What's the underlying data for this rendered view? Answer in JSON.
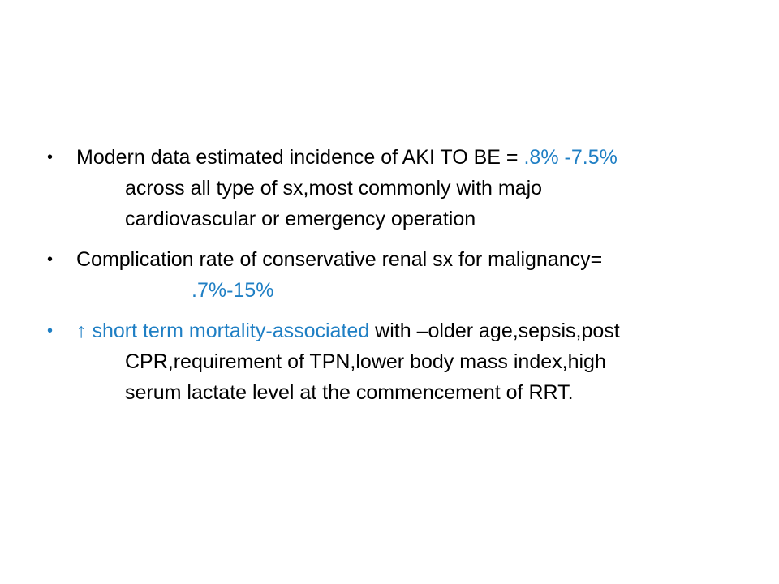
{
  "slide": {
    "bullets": [
      {
        "line1_text": "Modern data estimated incidence of AKI TO BE = ",
        "line1_highlight": ".8% -7.5%",
        "line2": "across all type of sx,most commonly with majo",
        "line3": "cardiovascular or emergency operation"
      },
      {
        "line1": "Complication rate of conservative renal sx for malignancy=",
        "line2_highlight": ".7%-15%"
      },
      {
        "line1_highlight": "↑ short term mortality-associated",
        "line1_text": " with –older age,sepsis,post",
        "line2": "CPR,requirement of TPN,lower body mass index,high",
        "line3": "serum lactate level at the commencement of RRT."
      }
    ],
    "colors": {
      "text": "#000000",
      "accent": "#1f7fc4",
      "background": "#ffffff"
    }
  }
}
